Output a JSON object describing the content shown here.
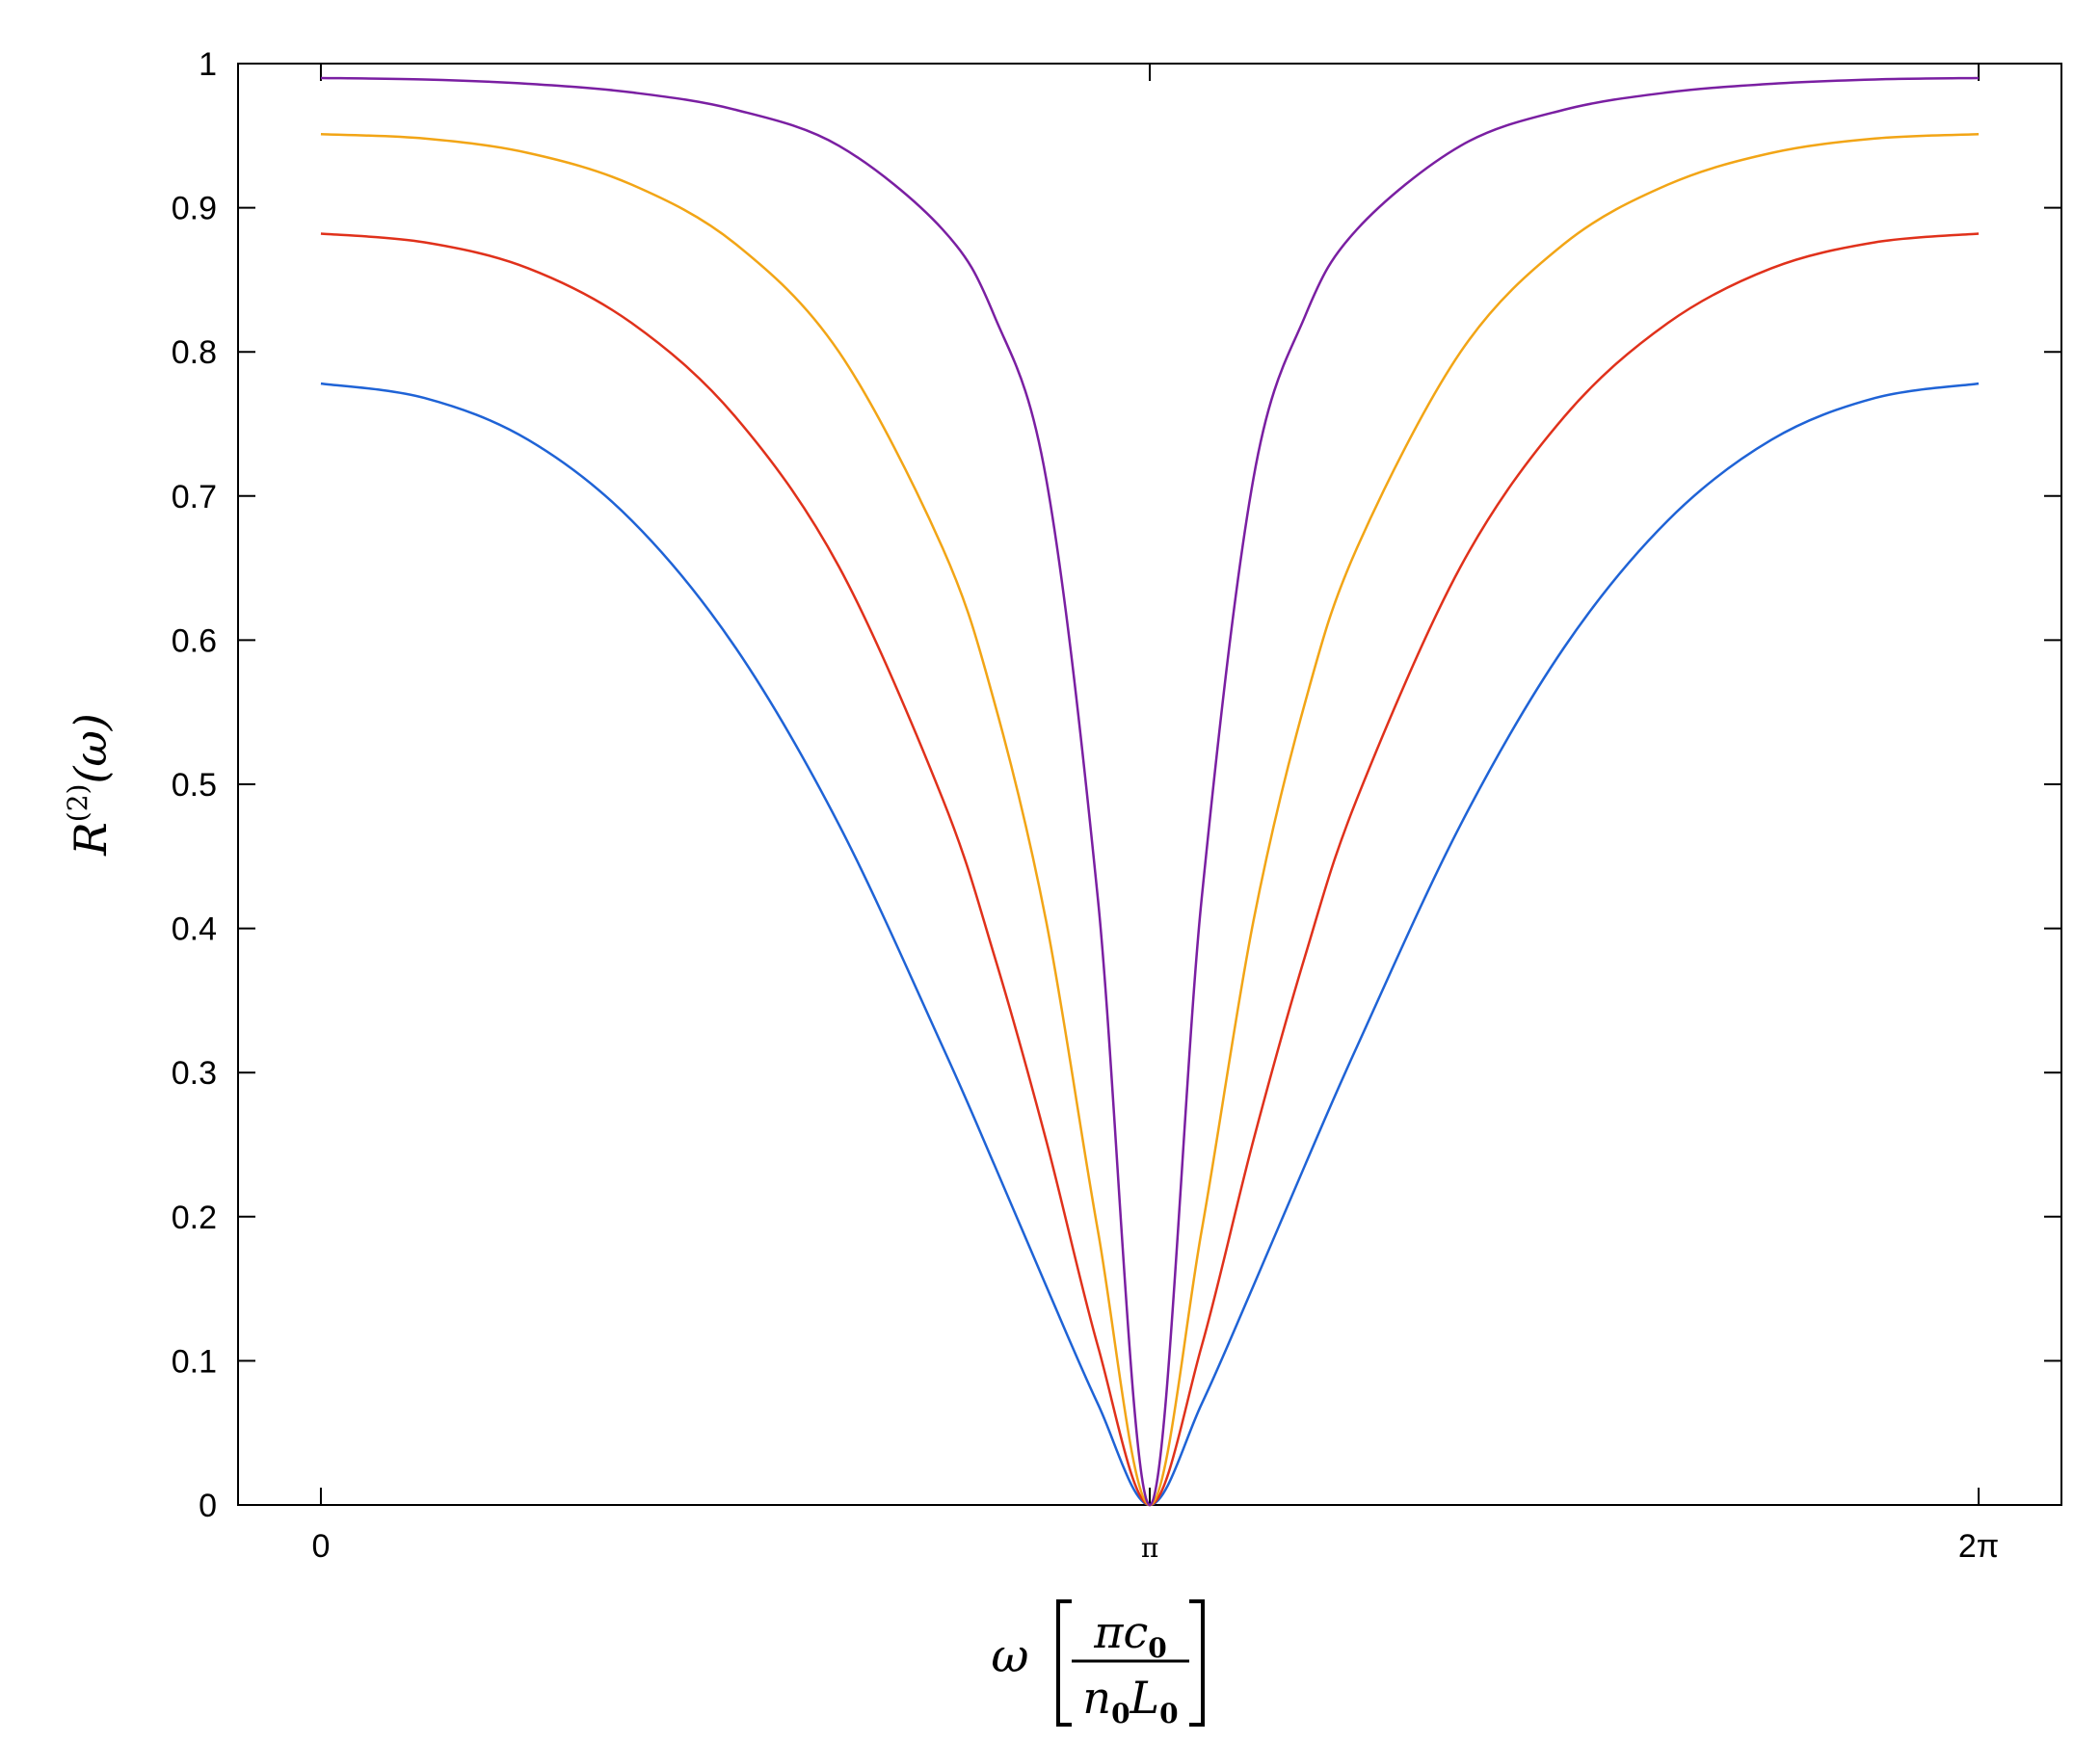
{
  "chart_data": {
    "type": "line",
    "title": "",
    "xlabel": {
      "symbol": "ω",
      "numerator": "πc",
      "numerator_sub": "0",
      "denominator_n": "n",
      "denominator_n_sub": "0",
      "denominator_L": "L",
      "denominator_L_sub": "0"
    },
    "ylabel": {
      "base": "R",
      "superscript": "(2)",
      "arg": "(ω)"
    },
    "xlim": [
      -0.314,
      6.597
    ],
    "ylim": [
      0,
      1
    ],
    "x_ticks": [
      {
        "value": 0,
        "label": "0"
      },
      {
        "value": 3.14159,
        "label": "π"
      },
      {
        "value": 6.28318,
        "label": "2π"
      }
    ],
    "y_ticks": [
      {
        "value": 0,
        "label": "0"
      },
      {
        "value": 0.1,
        "label": "0.1"
      },
      {
        "value": 0.2,
        "label": "0.2"
      },
      {
        "value": 0.3,
        "label": "0.3"
      },
      {
        "value": 0.4,
        "label": "0.4"
      },
      {
        "value": 0.5,
        "label": "0.5"
      },
      {
        "value": 0.6,
        "label": "0.6"
      },
      {
        "value": 0.7,
        "label": "0.7"
      },
      {
        "value": 0.8,
        "label": "0.8"
      },
      {
        "value": 0.9,
        "label": "0.9"
      },
      {
        "value": 1,
        "label": "1"
      }
    ],
    "grid": false,
    "legend": "none",
    "x": [
      0,
      0.3927,
      0.7854,
      1.1781,
      1.5708,
      1.9635,
      2.3562,
      2.5525,
      2.7489,
      2.9452,
      3.1416,
      3.3379,
      3.5343,
      3.7306,
      3.927,
      4.3197,
      4.7124,
      5.1051,
      5.4978,
      5.8905,
      6.2832
    ],
    "series": [
      {
        "color": "#1f63d6",
        "values": [
          0.778,
          0.768,
          0.739,
          0.683,
          0.595,
          0.472,
          0.318,
          0.236,
          0.152,
          0.07,
          0.0,
          0.07,
          0.152,
          0.236,
          0.318,
          0.472,
          0.595,
          0.683,
          0.739,
          0.768,
          0.778
        ]
      },
      {
        "color": "#e0311b",
        "values": [
          0.882,
          0.876,
          0.858,
          0.82,
          0.755,
          0.651,
          0.49,
          0.381,
          0.253,
          0.11,
          0.0,
          0.11,
          0.253,
          0.381,
          0.49,
          0.651,
          0.755,
          0.82,
          0.858,
          0.876,
          0.882
        ]
      },
      {
        "color": "#f2a516",
        "values": [
          0.951,
          0.948,
          0.938,
          0.916,
          0.875,
          0.8,
          0.664,
          0.557,
          0.405,
          0.19,
          0.0,
          0.19,
          0.405,
          0.557,
          0.664,
          0.8,
          0.875,
          0.916,
          0.938,
          0.948,
          0.951
        ]
      },
      {
        "color": "#7a1fa2",
        "values": [
          0.99,
          0.989,
          0.986,
          0.98,
          0.968,
          0.943,
          0.885,
          0.825,
          0.712,
          0.42,
          0.0,
          0.42,
          0.712,
          0.825,
          0.885,
          0.943,
          0.968,
          0.98,
          0.986,
          0.989,
          0.99
        ]
      }
    ]
  }
}
